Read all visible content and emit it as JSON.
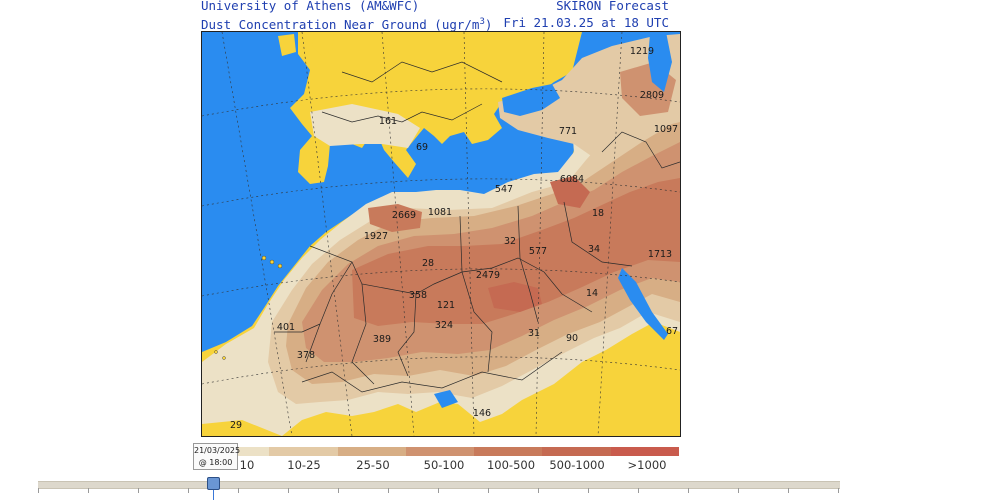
{
  "header": {
    "org": "University of Athens (AM&WFC)",
    "product": "SKIRON Forecast",
    "variable_prefix": "Dust Concentration Near Ground (ugr/m",
    "variable_exp": "3",
    "variable_suffix": ")",
    "valid_time": "Fri 21.03.25 at 18 UTC"
  },
  "colors": {
    "sea": "#2a8cf0",
    "land_no_dust": "#f7d33b",
    "border": "#2b2b2b",
    "legend": [
      "#ece1c6",
      "#e3caa6",
      "#d7ae85",
      "#cf9270",
      "#c87a5b",
      "#c56a52",
      "#c95b4d"
    ]
  },
  "legend": {
    "labels": [
      "10",
      "10-25",
      "25-50",
      "50-100",
      "100-500",
      "500-1000",
      ">1000"
    ]
  },
  "map_labels": [
    "1219",
    "2809",
    "1097",
    "771",
    "161",
    "69",
    "6084",
    "547",
    "18",
    "2669",
    "1081",
    "1927",
    "32",
    "577",
    "34",
    "1713",
    "28",
    "2479",
    "358",
    "121",
    "14",
    "401",
    "324",
    "389",
    "31",
    "90",
    "378",
    "67",
    "146",
    "29"
  ],
  "timeline": {
    "tooltip_date": "21/03/2025",
    "tooltip_time": "@ 18:00"
  }
}
